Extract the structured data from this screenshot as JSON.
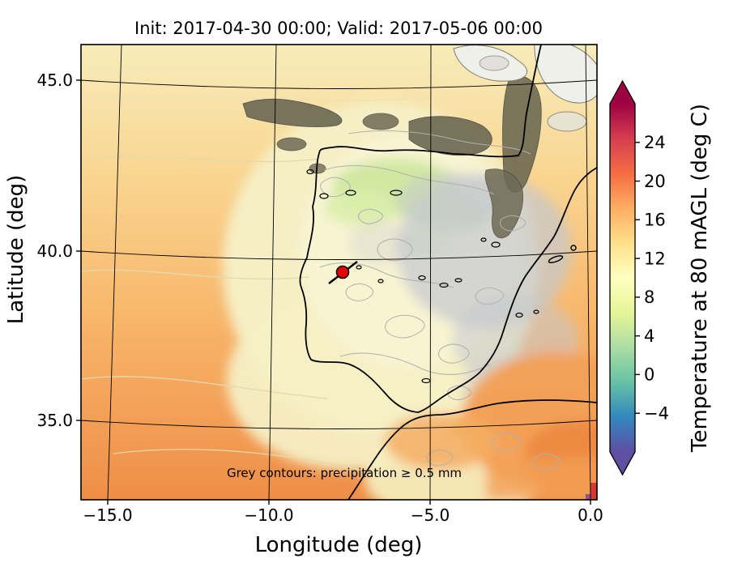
{
  "figure": {
    "title": "Init: 2017-04-30 00:00; Valid: 2017-05-06 00:00"
  },
  "axes": {
    "xlabel": "Longitude (deg)",
    "ylabel": "Latitude (deg)",
    "x_ticks": [
      "−15.0",
      "−10.0",
      "−5.0",
      "0.0"
    ],
    "y_ticks": [
      "45.0",
      "40.0",
      "35.0"
    ]
  },
  "colorbar": {
    "label": "Temperature at 80 mAGL (deg C)",
    "ticks": [
      "24",
      "20",
      "16",
      "12",
      "8",
      "4",
      "0",
      "−4"
    ],
    "extend": "both",
    "colormap": [
      "#5e4fa2",
      "#3288bd",
      "#66c2a5",
      "#abdda4",
      "#e6f598",
      "#ffffbf",
      "#fee08b",
      "#fdae61",
      "#f46d43",
      "#d53e4f",
      "#9e0142"
    ]
  },
  "annotation": {
    "text": "Grey contours: precipitation ≥ 0.5 mm",
    "color": "#4d4d4d"
  },
  "marker": {
    "color": "#e50000",
    "lon_est": -7.8,
    "lat_est": 39.4
  },
  "chart_data": {
    "type": "heatmap",
    "title": "Init: 2017-04-30 00:00; Valid: 2017-05-06 00:00",
    "xlabel": "Longitude (deg)",
    "ylabel": "Latitude (deg)",
    "xlim": [
      -15.8,
      0.2
    ],
    "ylim": [
      32.7,
      46.1
    ],
    "x_ticks": [
      -15,
      -10,
      -5,
      0
    ],
    "y_ticks": [
      35,
      40,
      45
    ],
    "field": "Temperature at 80 mAGL (deg C)",
    "init_time": "2017-04-30 00:00",
    "valid_time": "2017-05-06 00:00",
    "region": "Iberian Peninsula and surrounding Atlantic / Mediterranean",
    "colorbar_ticks": [
      -4,
      0,
      4,
      8,
      12,
      16,
      20,
      24
    ],
    "colorbar_range_est": [
      -8,
      28
    ],
    "colormap_name": "Spectral_r",
    "colorbar_extend": "both",
    "overlay": "grey contours: precipitation ≥ 0.5 mm",
    "marker_point": {
      "lon_est": -7.8,
      "lat_est": 39.4,
      "label": "red station marker with black cross-line"
    },
    "field_summary_est": [
      {
        "area": "Atlantic southwest of Iberia",
        "temp_degC_est": 18
      },
      {
        "area": "Atlantic northwest (top-left)",
        "temp_degC_est": 13
      },
      {
        "area": "Iberian interior plateau",
        "temp_degC_est": 10
      },
      {
        "area": "Northwest plateau green patches",
        "temp_degC_est": 7
      },
      {
        "area": "Mediterranean southeast corner",
        "temp_degC_est": 17
      },
      {
        "area": "North coast / Biscay dark precipitating cloud band",
        "temp_degC_est": 12
      }
    ]
  }
}
